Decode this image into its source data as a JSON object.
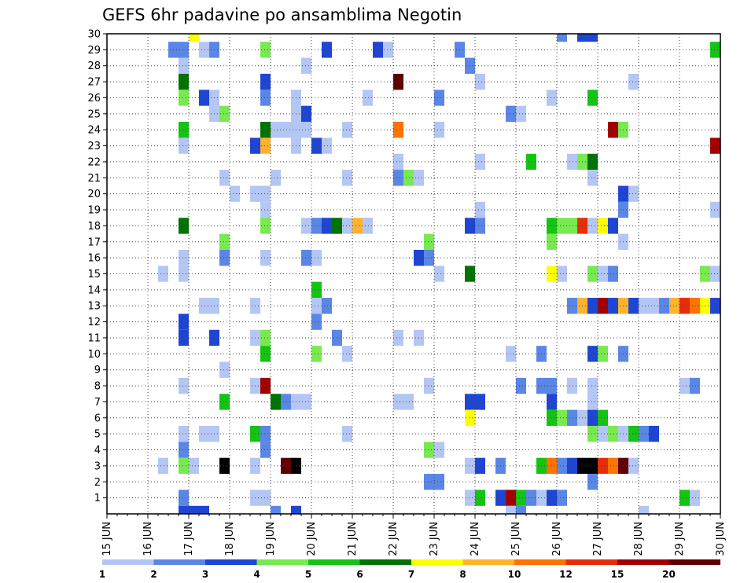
{
  "chart_data": {
    "type": "heatmap",
    "title": "GEFS 6hr padavine po ansamblima Negotin",
    "xlabel": "",
    "ylabel": "",
    "x_tick_labels": [
      "15 JUN",
      "16 JUN",
      "17 JUN",
      "18 JUN",
      "19 JUN",
      "20 JUN",
      "21 JUN",
      "22 JUN",
      "23 JUN",
      "24 JUN",
      "25 JUN",
      "26 JUN",
      "27 JUN",
      "28 JUN",
      "29 JUN",
      "30 JUN"
    ],
    "xlim": [
      0,
      60
    ],
    "ylim": [
      0,
      30
    ],
    "y_ticks": [
      1,
      2,
      3,
      4,
      5,
      6,
      7,
      8,
      9,
      10,
      11,
      12,
      13,
      14,
      15,
      16,
      17,
      18,
      19,
      20,
      21,
      22,
      23,
      24,
      25,
      26,
      27,
      28,
      29,
      30
    ],
    "grid": true,
    "legend_position": "bottom",
    "color_scale": {
      "breaks": [
        "1",
        "2",
        "3",
        "4",
        "5",
        "6",
        "7",
        "8",
        "10",
        "12",
        "15",
        "20"
      ],
      "colors": [
        "#b4c6f4",
        "#5a86e6",
        "#1e46d2",
        "#78ea50",
        "#14c314",
        "#007300",
        "#ffff00",
        "#ffb32d",
        "#ff7300",
        "#e62d0a",
        "#a00000",
        "#5f0000"
      ]
    },
    "cells": [
      [
        8,
        30,
        7
      ],
      [
        44,
        30,
        2
      ],
      [
        46,
        30,
        3
      ],
      [
        47,
        30,
        3
      ],
      [
        6,
        29,
        2
      ],
      [
        7,
        29,
        2
      ],
      [
        9,
        29,
        1
      ],
      [
        10,
        29,
        2
      ],
      [
        15,
        29,
        4
      ],
      [
        21,
        29,
        3
      ],
      [
        26,
        29,
        3
      ],
      [
        27,
        29,
        1
      ],
      [
        34,
        29,
        2
      ],
      [
        59,
        29,
        5
      ],
      [
        7,
        28,
        1
      ],
      [
        19,
        28,
        1
      ],
      [
        35,
        28,
        2
      ],
      [
        7,
        27,
        6
      ],
      [
        15,
        27,
        3
      ],
      [
        28,
        27,
        12
      ],
      [
        36,
        27,
        1
      ],
      [
        51,
        27,
        1
      ],
      [
        7,
        26,
        4
      ],
      [
        9,
        26,
        3
      ],
      [
        10,
        26,
        1
      ],
      [
        15,
        26,
        2
      ],
      [
        18,
        26,
        1
      ],
      [
        25,
        26,
        1
      ],
      [
        32,
        26,
        2
      ],
      [
        43,
        26,
        1
      ],
      [
        47,
        26,
        5
      ],
      [
        10,
        25,
        1
      ],
      [
        11,
        25,
        4
      ],
      [
        18,
        25,
        1
      ],
      [
        19,
        25,
        3
      ],
      [
        39,
        25,
        2
      ],
      [
        40,
        25,
        1
      ],
      [
        7,
        24,
        5
      ],
      [
        15,
        24,
        6
      ],
      [
        16,
        24,
        1
      ],
      [
        17,
        24,
        1
      ],
      [
        18,
        24,
        1
      ],
      [
        19,
        24,
        1
      ],
      [
        23,
        24,
        1
      ],
      [
        28,
        24,
        9
      ],
      [
        32,
        24,
        1
      ],
      [
        49,
        24,
        11
      ],
      [
        50,
        24,
        4
      ],
      [
        7,
        23,
        1
      ],
      [
        14,
        23,
        3
      ],
      [
        15,
        23,
        8
      ],
      [
        18,
        23,
        1
      ],
      [
        20,
        23,
        3
      ],
      [
        21,
        23,
        1
      ],
      [
        59,
        23,
        11
      ],
      [
        28,
        22,
        1
      ],
      [
        36,
        22,
        1
      ],
      [
        41,
        22,
        5
      ],
      [
        45,
        22,
        1
      ],
      [
        46,
        22,
        4
      ],
      [
        47,
        22,
        6
      ],
      [
        11,
        21,
        1
      ],
      [
        16,
        21,
        1
      ],
      [
        23,
        21,
        1
      ],
      [
        28,
        21,
        2
      ],
      [
        29,
        21,
        4
      ],
      [
        30,
        21,
        1
      ],
      [
        47,
        21,
        1
      ],
      [
        12,
        20,
        1
      ],
      [
        14,
        20,
        1
      ],
      [
        15,
        20,
        1
      ],
      [
        50,
        20,
        3
      ],
      [
        51,
        20,
        1
      ],
      [
        15,
        19,
        1
      ],
      [
        36,
        19,
        1
      ],
      [
        50,
        19,
        2
      ],
      [
        59,
        19,
        1
      ],
      [
        7,
        18,
        6
      ],
      [
        15,
        18,
        4
      ],
      [
        19,
        18,
        1
      ],
      [
        20,
        18,
        2
      ],
      [
        21,
        18,
        3
      ],
      [
        22,
        18,
        6
      ],
      [
        23,
        18,
        1
      ],
      [
        24,
        18,
        8
      ],
      [
        25,
        18,
        1
      ],
      [
        35,
        18,
        3
      ],
      [
        36,
        18,
        2
      ],
      [
        43,
        18,
        5
      ],
      [
        44,
        18,
        4
      ],
      [
        45,
        18,
        4
      ],
      [
        46,
        18,
        10
      ],
      [
        47,
        18,
        1
      ],
      [
        48,
        18,
        7
      ],
      [
        49,
        18,
        3
      ],
      [
        11,
        17,
        4
      ],
      [
        31,
        17,
        4
      ],
      [
        43,
        17,
        4
      ],
      [
        50,
        17,
        1
      ],
      [
        7,
        16,
        1
      ],
      [
        11,
        16,
        2
      ],
      [
        15,
        16,
        1
      ],
      [
        19,
        16,
        2
      ],
      [
        20,
        16,
        1
      ],
      [
        30,
        16,
        3
      ],
      [
        31,
        16,
        2
      ],
      [
        5,
        15,
        1
      ],
      [
        7,
        15,
        1
      ],
      [
        32,
        15,
        1
      ],
      [
        35,
        15,
        6
      ],
      [
        43,
        15,
        7
      ],
      [
        44,
        15,
        1
      ],
      [
        47,
        15,
        4
      ],
      [
        48,
        15,
        1
      ],
      [
        49,
        15,
        2
      ],
      [
        58,
        15,
        4
      ],
      [
        59,
        15,
        1
      ],
      [
        20,
        14,
        5
      ],
      [
        9,
        13,
        1
      ],
      [
        10,
        13,
        1
      ],
      [
        14,
        13,
        1
      ],
      [
        20,
        13,
        1
      ],
      [
        21,
        13,
        2
      ],
      [
        45,
        13,
        2
      ],
      [
        46,
        13,
        8
      ],
      [
        47,
        13,
        3
      ],
      [
        48,
        13,
        11
      ],
      [
        49,
        13,
        3
      ],
      [
        50,
        13,
        8
      ],
      [
        51,
        13,
        3
      ],
      [
        52,
        13,
        1
      ],
      [
        53,
        13,
        1
      ],
      [
        54,
        13,
        2
      ],
      [
        55,
        13,
        8
      ],
      [
        56,
        13,
        10
      ],
      [
        57,
        13,
        9
      ],
      [
        58,
        13,
        7
      ],
      [
        59,
        13,
        3
      ],
      [
        7,
        12,
        3
      ],
      [
        20,
        12,
        2
      ],
      [
        7,
        11,
        3
      ],
      [
        10,
        11,
        3
      ],
      [
        14,
        11,
        1
      ],
      [
        15,
        11,
        4
      ],
      [
        22,
        11,
        2
      ],
      [
        28,
        11,
        1
      ],
      [
        30,
        11,
        1
      ],
      [
        15,
        10,
        5
      ],
      [
        20,
        10,
        4
      ],
      [
        23,
        10,
        1
      ],
      [
        39,
        10,
        1
      ],
      [
        42,
        10,
        2
      ],
      [
        47,
        10,
        3
      ],
      [
        48,
        10,
        4
      ],
      [
        50,
        10,
        2
      ],
      [
        11,
        9,
        1
      ],
      [
        7,
        8,
        1
      ],
      [
        14,
        8,
        1
      ],
      [
        15,
        8,
        11
      ],
      [
        31,
        8,
        1
      ],
      [
        40,
        8,
        2
      ],
      [
        42,
        8,
        2
      ],
      [
        43,
        8,
        2
      ],
      [
        45,
        8,
        1
      ],
      [
        47,
        8,
        1
      ],
      [
        56,
        8,
        1
      ],
      [
        57,
        8,
        2
      ],
      [
        11,
        7,
        5
      ],
      [
        16,
        7,
        6
      ],
      [
        17,
        7,
        2
      ],
      [
        18,
        7,
        1
      ],
      [
        19,
        7,
        1
      ],
      [
        28,
        7,
        1
      ],
      [
        29,
        7,
        1
      ],
      [
        35,
        7,
        3
      ],
      [
        36,
        7,
        3
      ],
      [
        43,
        7,
        3
      ],
      [
        47,
        7,
        1
      ],
      [
        35,
        6,
        7
      ],
      [
        43,
        6,
        5
      ],
      [
        44,
        6,
        4
      ],
      [
        45,
        6,
        2
      ],
      [
        46,
        6,
        1
      ],
      [
        47,
        6,
        3
      ],
      [
        48,
        6,
        5
      ],
      [
        7,
        5,
        1
      ],
      [
        9,
        5,
        1
      ],
      [
        10,
        5,
        1
      ],
      [
        14,
        5,
        5
      ],
      [
        15,
        5,
        2
      ],
      [
        23,
        5,
        1
      ],
      [
        47,
        5,
        4
      ],
      [
        48,
        5,
        1
      ],
      [
        49,
        5,
        4
      ],
      [
        50,
        5,
        1
      ],
      [
        51,
        5,
        5
      ],
      [
        52,
        5,
        2
      ],
      [
        53,
        5,
        3
      ],
      [
        7,
        4,
        2
      ],
      [
        15,
        4,
        2
      ],
      [
        31,
        4,
        4
      ],
      [
        32,
        4,
        1
      ],
      [
        5,
        3,
        1
      ],
      [
        7,
        3,
        4
      ],
      [
        8,
        3,
        1
      ],
      [
        11,
        3,
        13
      ],
      [
        14,
        3,
        1
      ],
      [
        17,
        3,
        12
      ],
      [
        18,
        3,
        13
      ],
      [
        35,
        3,
        1
      ],
      [
        36,
        3,
        3
      ],
      [
        38,
        3,
        2
      ],
      [
        42,
        3,
        5
      ],
      [
        43,
        3,
        9
      ],
      [
        44,
        3,
        2
      ],
      [
        45,
        3,
        3
      ],
      [
        46,
        3,
        14
      ],
      [
        47,
        3,
        14
      ],
      [
        48,
        3,
        10
      ],
      [
        49,
        3,
        9
      ],
      [
        50,
        3,
        12
      ],
      [
        51,
        3,
        1
      ],
      [
        31,
        2,
        2
      ],
      [
        32,
        2,
        2
      ],
      [
        47,
        2,
        2
      ],
      [
        7,
        1,
        2
      ],
      [
        14,
        1,
        1
      ],
      [
        15,
        1,
        1
      ],
      [
        35,
        1,
        1
      ],
      [
        36,
        1,
        5
      ],
      [
        38,
        1,
        3
      ],
      [
        39,
        1,
        11
      ],
      [
        40,
        1,
        5
      ],
      [
        41,
        1,
        2
      ],
      [
        42,
        1,
        1
      ],
      [
        43,
        1,
        3
      ],
      [
        44,
        1,
        2
      ],
      [
        56,
        1,
        5
      ],
      [
        57,
        1,
        1
      ],
      [
        7,
        0,
        3
      ],
      [
        8,
        0,
        3
      ],
      [
        9,
        0,
        3
      ],
      [
        16,
        0,
        2
      ],
      [
        18,
        0,
        3
      ],
      [
        39,
        0,
        1
      ],
      [
        40,
        0,
        2
      ],
      [
        52,
        0,
        1
      ]
    ]
  }
}
